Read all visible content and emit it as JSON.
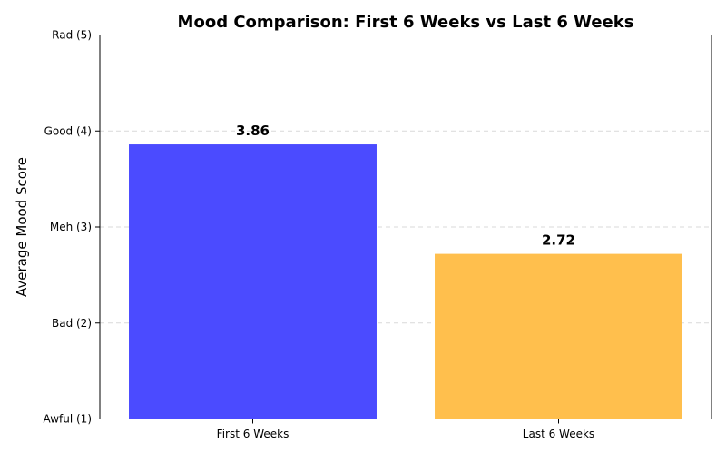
{
  "chart_data": {
    "type": "bar",
    "title": "Mood Comparison: First 6 Weeks vs Last 6 Weeks",
    "xlabel": "",
    "ylabel": "Average Mood Score",
    "categories": [
      "First 6 Weeks",
      "Last 6 Weeks"
    ],
    "values": [
      3.86,
      2.72
    ],
    "value_labels": [
      "3.86",
      "2.72"
    ],
    "colors": [
      "#4B4BFF",
      "#FFBF4D"
    ],
    "ylim": [
      1,
      5
    ],
    "yticks": [
      1,
      2,
      3,
      4,
      5
    ],
    "ytick_labels": [
      "Awful (1)",
      "Bad (2)",
      "Meh (3)",
      "Good (4)",
      "Rad (5)"
    ],
    "grid": true
  }
}
